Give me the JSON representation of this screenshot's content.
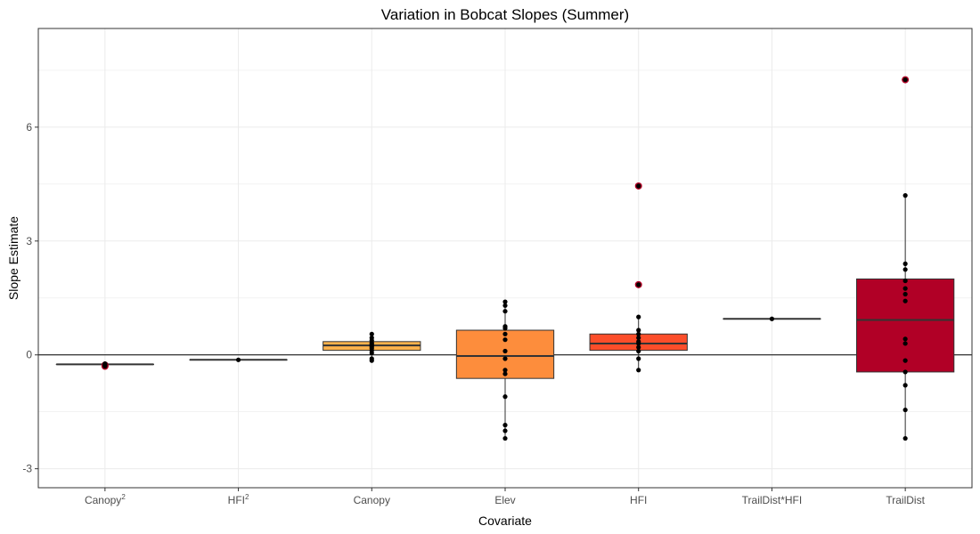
{
  "chart_data": {
    "type": "boxplot",
    "title": "Variation in Bobcat Slopes (Summer)",
    "xlabel": "Covariate",
    "ylabel": "Slope Estimate",
    "ylim": [
      -3.5,
      8.6
    ],
    "yticks": [
      -3,
      0,
      3,
      6
    ],
    "reference_line_y": 0,
    "grid": true,
    "categories": [
      {
        "label": "Canopy",
        "sup": "2",
        "color": "#fed976",
        "box": {
          "q1": -0.25,
          "median": -0.25,
          "q3": -0.25,
          "whisker_low": -0.25,
          "whisker_high": -0.25
        },
        "points": [
          -0.28,
          -0.27,
          -0.26,
          -0.25,
          -0.25,
          -0.24,
          -0.24,
          -0.23
        ],
        "outliers": [
          -0.3,
          -0.27
        ]
      },
      {
        "label": "HFI",
        "sup": "2",
        "color": "#fed976",
        "box": {
          "q1": -0.13,
          "median": -0.13,
          "q3": -0.13,
          "whisker_low": -0.13,
          "whisker_high": -0.13
        },
        "points": [
          -0.13
        ],
        "outliers": []
      },
      {
        "label": "Canopy",
        "sup": "",
        "color": "#feb24c",
        "box": {
          "q1": 0.12,
          "median": 0.25,
          "q3": 0.35,
          "whisker_low": -0.15,
          "whisker_high": 0.55
        },
        "points": [
          -0.15,
          -0.1,
          0.05,
          0.12,
          0.18,
          0.22,
          0.25,
          0.28,
          0.32,
          0.38,
          0.45,
          0.55
        ],
        "outliers": []
      },
      {
        "label": "Elev",
        "sup": "",
        "color": "#fd8d3c",
        "box": {
          "q1": -0.62,
          "median": -0.03,
          "q3": 0.65,
          "whisker_low": -2.2,
          "whisker_high": 1.4
        },
        "points": [
          -2.2,
          -2.0,
          -1.85,
          -1.1,
          -0.5,
          -0.4,
          -0.1,
          0.1,
          0.4,
          0.55,
          0.7,
          0.75,
          1.15,
          1.3,
          1.4
        ],
        "outliers": []
      },
      {
        "label": "HFI",
        "sup": "",
        "color": "#fc4e2a",
        "box": {
          "q1": 0.12,
          "median": 0.3,
          "q3": 0.55,
          "whisker_low": -0.4,
          "whisker_high": 1.0
        },
        "points": [
          -0.4,
          -0.1,
          0.1,
          0.2,
          0.3,
          0.35,
          0.45,
          0.55,
          0.65,
          1.0
        ],
        "outliers": [
          1.85,
          4.45
        ]
      },
      {
        "label": "TrailDist*HFI",
        "sup": "",
        "color": "#e31a1c",
        "box": {
          "q1": 0.95,
          "median": 0.95,
          "q3": 0.95,
          "whisker_low": 0.95,
          "whisker_high": 0.95
        },
        "points": [
          0.95
        ],
        "outliers": []
      },
      {
        "label": "TrailDist",
        "sup": "",
        "color": "#b10026",
        "box": {
          "q1": -0.45,
          "median": 0.92,
          "q3": 2.0,
          "whisker_low": -2.2,
          "whisker_high": 4.2
        },
        "points": [
          -2.2,
          -1.45,
          -0.8,
          -0.45,
          -0.15,
          0.3,
          0.42,
          1.42,
          1.6,
          1.75,
          1.95,
          2.25,
          2.4,
          4.2
        ],
        "outliers": [
          7.25
        ]
      }
    ]
  }
}
